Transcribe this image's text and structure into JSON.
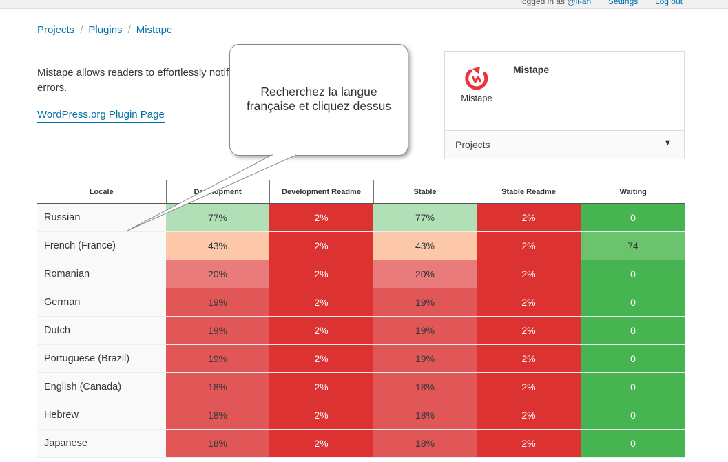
{
  "topbar": {
    "logged_in_prefix": "logged in as",
    "username": "@li-an",
    "settings": "Settings",
    "logout": "Log out"
  },
  "breadcrumb": [
    "Projects",
    "Plugins",
    "Mistape"
  ],
  "description": "Mistape allows readers to effortlessly notify",
  "description_cont": "errors.",
  "plugin_page_link": "WordPress.org Plugin Page",
  "callout": {
    "line1": "Recherchez la langue",
    "line2": "française et cliquez dessus"
  },
  "card": {
    "logo_text": "Mistape",
    "title": "Mistape",
    "dropdown_label": "Projects"
  },
  "table": {
    "headers": [
      "Locale",
      "Development",
      "Development Readme",
      "Stable",
      "Stable Readme",
      "Waiting"
    ],
    "rows": [
      {
        "locale": "Russian",
        "dev": "77%",
        "dev_readme": "2%",
        "stable": "77%",
        "stable_readme": "2%",
        "waiting": "0"
      },
      {
        "locale": "French (France)",
        "dev": "43%",
        "dev_readme": "2%",
        "stable": "43%",
        "stable_readme": "2%",
        "waiting": "74"
      },
      {
        "locale": "Romanian",
        "dev": "20%",
        "dev_readme": "2%",
        "stable": "20%",
        "stable_readme": "2%",
        "waiting": "0"
      },
      {
        "locale": "German",
        "dev": "19%",
        "dev_readme": "2%",
        "stable": "19%",
        "stable_readme": "2%",
        "waiting": "0"
      },
      {
        "locale": "Dutch",
        "dev": "19%",
        "dev_readme": "2%",
        "stable": "19%",
        "stable_readme": "2%",
        "waiting": "0"
      },
      {
        "locale": "Portuguese (Brazil)",
        "dev": "19%",
        "dev_readme": "2%",
        "stable": "19%",
        "stable_readme": "2%",
        "waiting": "0"
      },
      {
        "locale": "English (Canada)",
        "dev": "18%",
        "dev_readme": "2%",
        "stable": "18%",
        "stable_readme": "2%",
        "waiting": "0"
      },
      {
        "locale": "Hebrew",
        "dev": "18%",
        "dev_readme": "2%",
        "stable": "18%",
        "stable_readme": "2%",
        "waiting": "0"
      },
      {
        "locale": "Japanese",
        "dev": "18%",
        "dev_readme": "2%",
        "stable": "18%",
        "stable_readme": "2%",
        "waiting": "0"
      }
    ]
  },
  "colors": {
    "link": "#0073aa",
    "red": "#dc3232",
    "green": "#46b450",
    "light_green": "#b2e0b6",
    "peach": "#fcc8a9",
    "pink": "#ea7b7b",
    "mid_red": "#e15757",
    "logo_red": "#e8343a"
  }
}
